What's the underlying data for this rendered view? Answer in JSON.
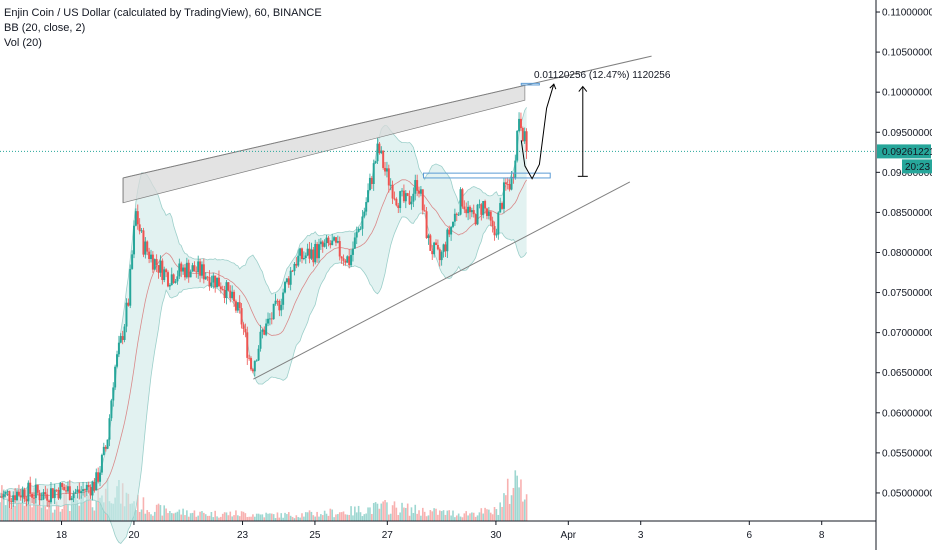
{
  "legend": {
    "symbol": "Enjin Coin / US Dollar (calculated by TradingView), 60, BINANCE",
    "indicator_bb": "BB (20, close, 2)",
    "indicator_vol": "Vol (20)"
  },
  "colors": {
    "up": "#26a69a",
    "down": "#ef5350",
    "bb_fill": "#cfe9e7",
    "bb_line": "#9ccfca",
    "wedge_fill": "#d9d9d9",
    "trend_line": "#808080",
    "price_line": "#26a69a",
    "range_line": "#5b9bd5"
  },
  "chart_data": {
    "type": "candlestick",
    "ylim": [
      0.0465,
      0.1115
    ],
    "y_ticks": [
      "0.11000000",
      "0.10500000",
      "0.10000000",
      "0.09500000",
      "0.09000000",
      "0.08500000",
      "0.08000000",
      "0.07500000",
      "0.07000000",
      "0.06500000",
      "0.06000000",
      "0.05500000",
      "0.05000000"
    ],
    "y_tick_values": [
      0.11,
      0.105,
      0.1,
      0.095,
      0.09,
      0.085,
      0.08,
      0.075,
      0.07,
      0.065,
      0.06,
      0.055,
      0.05
    ],
    "x_ticks": [
      "18",
      "20",
      "23",
      "25",
      "27",
      "30",
      "Apr",
      "3",
      "6",
      "8"
    ],
    "x_tick_values": [
      18,
      20,
      23,
      25,
      27,
      30,
      32,
      34,
      37,
      39
    ],
    "xlim": [
      16.3,
      40.5
    ],
    "current_price": "0.09261221",
    "current_price_value": 0.09261221,
    "countdown": "20:23",
    "price_path": [
      [
        16.3,
        0.0495
      ],
      [
        17.0,
        0.0502
      ],
      [
        17.5,
        0.0498
      ],
      [
        18.0,
        0.0505
      ],
      [
        18.5,
        0.05
      ],
      [
        19.0,
        0.0512
      ],
      [
        19.3,
        0.056
      ],
      [
        19.5,
        0.065
      ],
      [
        19.7,
        0.069
      ],
      [
        19.9,
        0.074
      ],
      [
        20.1,
        0.085
      ],
      [
        20.3,
        0.081
      ],
      [
        20.6,
        0.079
      ],
      [
        21.0,
        0.077
      ],
      [
        21.5,
        0.078
      ],
      [
        22.0,
        0.0775
      ],
      [
        22.5,
        0.076
      ],
      [
        23.0,
        0.072
      ],
      [
        23.3,
        0.0655
      ],
      [
        23.6,
        0.07
      ],
      [
        24.0,
        0.073
      ],
      [
        24.5,
        0.079
      ],
      [
        25.0,
        0.08
      ],
      [
        25.5,
        0.081
      ],
      [
        26.0,
        0.079
      ],
      [
        26.4,
        0.085
      ],
      [
        26.8,
        0.093
      ],
      [
        27.0,
        0.09
      ],
      [
        27.3,
        0.087
      ],
      [
        27.6,
        0.086
      ],
      [
        27.9,
        0.089
      ],
      [
        28.2,
        0.081
      ],
      [
        28.5,
        0.079
      ],
      [
        28.8,
        0.083
      ],
      [
        29.1,
        0.087
      ],
      [
        29.4,
        0.084
      ],
      [
        29.7,
        0.086
      ],
      [
        30.0,
        0.082
      ],
      [
        30.3,
        0.088
      ],
      [
        30.5,
        0.089
      ],
      [
        30.7,
        0.0975
      ],
      [
        30.9,
        0.0926
      ]
    ],
    "volume_path": [
      [
        16.3,
        0.55
      ],
      [
        16.6,
        0.4
      ],
      [
        17.0,
        0.6
      ],
      [
        17.5,
        0.3
      ],
      [
        18.0,
        0.45
      ],
      [
        18.5,
        0.35
      ],
      [
        19.0,
        0.5
      ],
      [
        19.4,
        0.8
      ],
      [
        19.6,
        0.55
      ],
      [
        20.0,
        0.4
      ],
      [
        20.5,
        0.25
      ],
      [
        21.0,
        0.2
      ],
      [
        22.0,
        0.15
      ],
      [
        23.0,
        0.15
      ],
      [
        24.0,
        0.12
      ],
      [
        25.0,
        0.15
      ],
      [
        26.0,
        0.2
      ],
      [
        27.0,
        0.3
      ],
      [
        28.0,
        0.2
      ],
      [
        29.0,
        0.15
      ],
      [
        30.0,
        0.2
      ],
      [
        30.7,
        1.0
      ],
      [
        30.9,
        0.3
      ]
    ],
    "wedge_upper": [
      [
        19.7,
        0.0893
      ],
      [
        34.3,
        0.1045
      ]
    ],
    "wedge_upper_inner": [
      [
        19.7,
        0.0862
      ],
      [
        30.8,
        0.099
      ]
    ],
    "wedge_lower": [
      [
        23.3,
        0.0642
      ],
      [
        33.7,
        0.0888
      ]
    ],
    "resistance_box": [
      [
        28.0,
        0.0899
      ],
      [
        31.5,
        0.0893
      ]
    ],
    "target_box": [
      [
        30.7,
        0.1009
      ],
      [
        31.2,
        0.1011
      ]
    ],
    "projection_curve": [
      [
        30.7,
        0.094
      ],
      [
        30.8,
        0.0908
      ],
      [
        31.0,
        0.0892
      ],
      [
        31.2,
        0.091
      ],
      [
        31.4,
        0.098
      ],
      [
        31.6,
        0.101
      ]
    ],
    "measure": {
      "x": 32.4,
      "y_from": 0.0895,
      "y_to": 0.1007
    },
    "measure_label": "0.01120256 (12.47%) 1120256"
  }
}
